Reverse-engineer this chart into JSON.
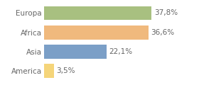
{
  "categories": [
    "America",
    "Asia",
    "Africa",
    "Europa"
  ],
  "values": [
    3.5,
    22.1,
    36.6,
    37.8
  ],
  "labels": [
    "3,5%",
    "22,1%",
    "36,6%",
    "37,8%"
  ],
  "colors": [
    "#f5d57a",
    "#7b9fc7",
    "#f0b97d",
    "#a8c080"
  ],
  "xlim": [
    0,
    46
  ],
  "background_color": "#ffffff",
  "bar_height": 0.72,
  "label_fontsize": 7.5,
  "category_fontsize": 7.5,
  "label_color": "#666666",
  "grid_color": "#e0e0e0"
}
